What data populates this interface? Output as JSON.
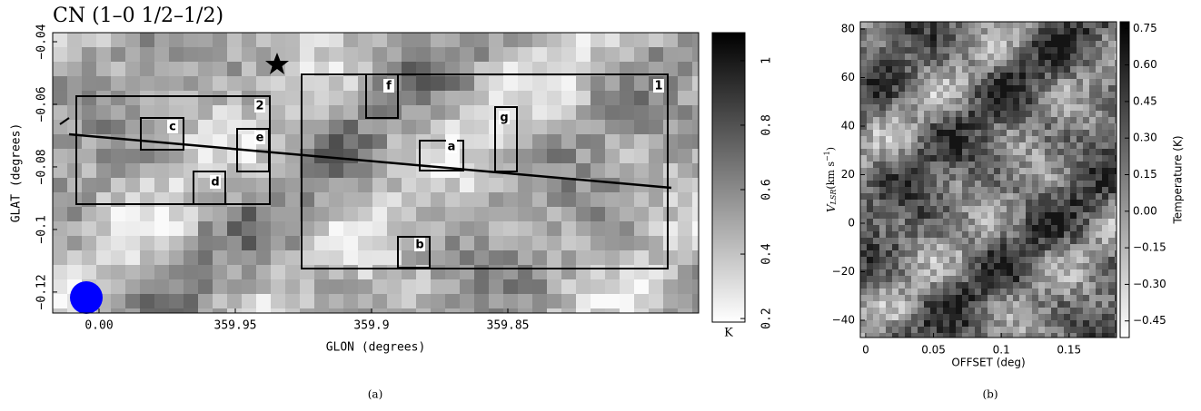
{
  "chart_data": [
    {
      "type": "heatmap",
      "title": "CN (1–0 1/2–1/2)",
      "xlabel": "GLON (degrees)",
      "ylabel": "GLAT (degrees)",
      "xlim": [
        360.017,
        359.78
      ],
      "xticks": [
        {
          "value": 360,
          "label": "0.00"
        },
        359.95,
        359.9,
        359.85
      ],
      "ylim": [
        -0.1267,
        -0.0371
      ],
      "yticks": [
        {
          "value": -0.12,
          "label": "−0.12"
        },
        {
          "value": -0.1,
          "label": "−0.1"
        },
        {
          "value": -0.08,
          "label": "−0.08"
        },
        {
          "value": -0.06,
          "label": "−0.06"
        },
        {
          "value": -0.04,
          "label": "−0.04"
        }
      ],
      "colorbar": {
        "label": "K",
        "lim": [
          0.189,
          1.087
        ],
        "ticks": [
          0.2,
          0.4,
          0.6,
          0.8,
          1
        ]
      },
      "annotations": [
        "1",
        "2",
        "a",
        "b",
        "c",
        "d",
        "e",
        "f",
        "g"
      ],
      "caption": "(a)"
    },
    {
      "type": "heatmap",
      "xlabel": "OFFSET (deg)",
      "ylabel_parts": [
        "V",
        "LSR",
        "(km s",
        "−1",
        ")"
      ],
      "xlim": [
        -0.004,
        0.185
      ],
      "xticks": [
        0,
        0.05,
        0.1,
        0.15
      ],
      "ylim": [
        -47.1,
        83
      ],
      "yticks": [
        {
          "value": -40,
          "label": "−40"
        },
        {
          "value": -20,
          "label": "−20"
        },
        0,
        20,
        40,
        60,
        80
      ],
      "colorbar": {
        "label": "Temperature (K)",
        "lim": [
          -0.518,
          0.777
        ],
        "ticks": [
          {
            "value": -0.45,
            "label": "−0.45"
          },
          {
            "value": -0.3,
            "label": "−0.30"
          },
          {
            "value": -0.15,
            "label": "−0.15"
          },
          {
            "value": 0,
            "label": "0.00"
          },
          0.15,
          {
            "value": 0.3,
            "label": "0.30"
          },
          0.45,
          {
            "value": 0.6,
            "label": "0.60"
          },
          0.75
        ]
      },
      "caption": "(b)"
    }
  ]
}
